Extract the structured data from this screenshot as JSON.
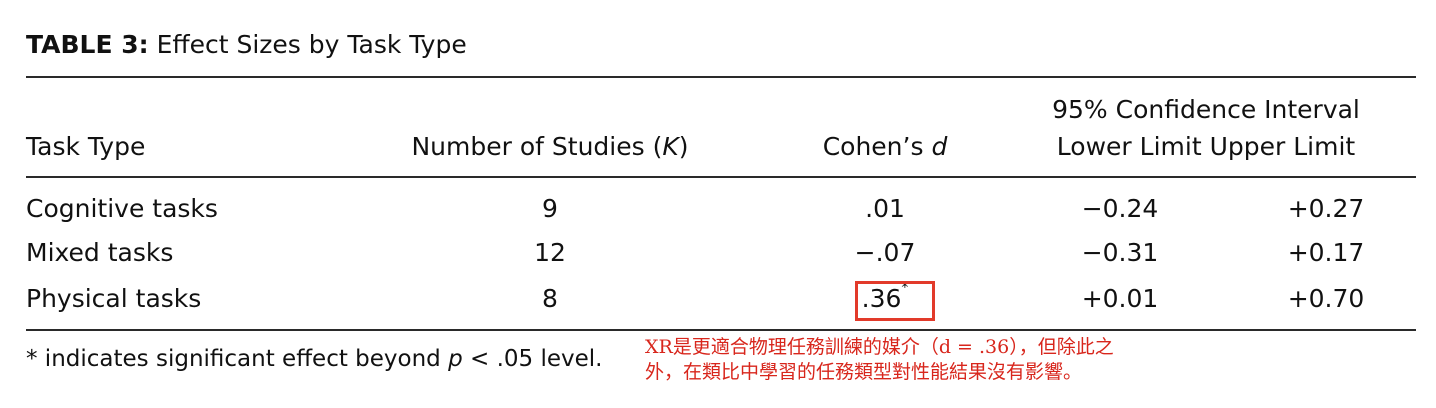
{
  "table": {
    "caption_label": "TABLE 3:",
    "caption_title": "Effect Sizes by Task Type",
    "headers": {
      "task_type": "Task Type",
      "num_studies": "Number of Studies (",
      "num_studies_var": "K",
      "num_studies_close": ")",
      "cohens": "Cohen’s ",
      "cohens_var": "d",
      "ci_title": "95% Confidence Interval",
      "lower": "Lower Limit",
      "upper": "Upper Limit"
    },
    "rows": [
      {
        "task": "Cognitive tasks",
        "k": "9",
        "d": ".01",
        "d_mark": "",
        "lower": "−0.24",
        "upper": "+0.27"
      },
      {
        "task": "Mixed tasks",
        "k": "12",
        "d": "−.07",
        "d_mark": "",
        "lower": "−0.31",
        "upper": "+0.17"
      },
      {
        "task": "Physical tasks",
        "k": "8",
        "d": ".36",
        "d_mark": "*",
        "lower": "+0.01",
        "upper": "+0.70"
      }
    ],
    "footnote": {
      "prefix": "* indicates significant effect beyond ",
      "var": "p",
      "suffix": " < .05 level."
    }
  },
  "annotation": {
    "line1": "XR是更適合物理任務訓練的媒介（d = .36），但除此之",
    "line2": "外，在類比中學習的任務類型對性能結果沒有影響。",
    "color": "#d8261c"
  }
}
